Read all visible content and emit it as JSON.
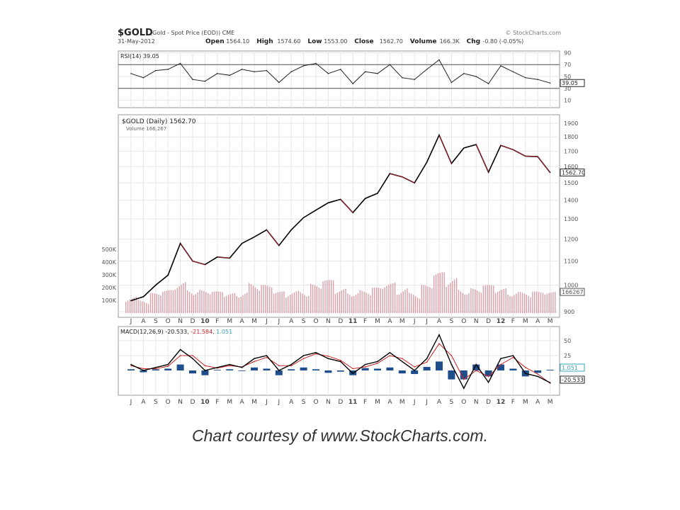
{
  "header": {
    "symbol": "$GOLD",
    "description": "(Gold - Spot Price (EOD)) CME",
    "date": "31-May-2012",
    "brand": "© StockCharts.com",
    "quote": [
      {
        "label": "Open",
        "value": "1564.10"
      },
      {
        "label": "High",
        "value": "1574.60"
      },
      {
        "label": "Low",
        "value": "1553.00"
      },
      {
        "label": "Close",
        "value": "1562.70"
      },
      {
        "label": "Volume",
        "value": "166.3K"
      },
      {
        "label": "Chg",
        "value": "-0.80 (-0.05%)"
      }
    ]
  },
  "caption": "Chart courtesy of www.StockCharts.com.",
  "colors": {
    "price": "#000000",
    "price_down": "#cc2233",
    "volume": "#d9a0a8",
    "macd": "#000000",
    "signal": "#cc2222",
    "histogram": "#1f4e8c",
    "grid": "#e6e6e6"
  },
  "chart_data": [
    {
      "type": "line",
      "title": "RSI(14) 39.05",
      "ylim": [
        0,
        100
      ],
      "yticks": [
        "90",
        "70",
        "50",
        "30",
        "10"
      ],
      "reference_lines": [
        70,
        30
      ],
      "last_label": "39.05",
      "x": [
        "J",
        "A",
        "S",
        "O",
        "N",
        "D",
        "10",
        "F",
        "M",
        "A",
        "M",
        "J",
        "J",
        "A",
        "S",
        "O",
        "N",
        "D",
        "11",
        "F",
        "M",
        "A",
        "M",
        "J",
        "J",
        "A",
        "S",
        "O",
        "N",
        "D",
        "12",
        "F",
        "M",
        "A",
        "M"
      ],
      "values": [
        55,
        48,
        60,
        62,
        72,
        45,
        42,
        55,
        52,
        62,
        58,
        60,
        40,
        58,
        68,
        72,
        55,
        62,
        38,
        58,
        55,
        70,
        48,
        45,
        62,
        78,
        40,
        55,
        50,
        38,
        68,
        58,
        48,
        45,
        39
      ]
    },
    {
      "type": "line",
      "title": "$GOLD (Daily) 1562.70",
      "subtitle": "Volume 166,267",
      "log_scale": true,
      "ylim": [
        880,
        1950
      ],
      "yticks": [
        "1900",
        "1800",
        "1700",
        "1600",
        "1500",
        "1400",
        "1300",
        "1200",
        "1100",
        "1000",
        "900"
      ],
      "last_label": "1562.70",
      "x": [
        "J",
        "A",
        "S",
        "O",
        "N",
        "D",
        "10",
        "F",
        "M",
        "A",
        "M",
        "J",
        "J",
        "A",
        "S",
        "O",
        "N",
        "D",
        "11",
        "F",
        "M",
        "A",
        "M",
        "J",
        "J",
        "A",
        "S",
        "O",
        "N",
        "D",
        "12",
        "F",
        "M",
        "A",
        "M"
      ],
      "values": [
        940,
        955,
        1000,
        1040,
        1180,
        1100,
        1085,
        1118,
        1113,
        1180,
        1210,
        1245,
        1170,
        1245,
        1307,
        1346,
        1386,
        1405,
        1333,
        1410,
        1439,
        1556,
        1536,
        1500,
        1628,
        1813,
        1620,
        1722,
        1746,
        1565,
        1740,
        1711,
        1668,
        1664,
        1563
      ],
      "volume": {
        "yticks": [
          "500K",
          "400K",
          "300K",
          "200K",
          "100K"
        ],
        "last_label": "166267",
        "values": [
          150,
          120,
          160,
          180,
          260,
          230,
          190,
          170,
          160,
          200,
          260,
          220,
          170,
          190,
          210,
          230,
          260,
          200,
          210,
          190,
          200,
          240,
          230,
          180,
          220,
          320,
          300,
          230,
          200,
          220,
          200,
          210,
          180,
          170,
          166
        ]
      }
    },
    {
      "type": "line",
      "title": "MACD(12,26,9)",
      "macd_label": "-20.533",
      "signal_label": "-21.584",
      "hist_label": "1.051",
      "yticks": [
        "50",
        "25"
      ],
      "ylim": [
        -45,
        70
      ],
      "x": [
        "J",
        "A",
        "S",
        "O",
        "N",
        "D",
        "10",
        "F",
        "M",
        "A",
        "M",
        "J",
        "J",
        "A",
        "S",
        "O",
        "N",
        "D",
        "11",
        "F",
        "M",
        "A",
        "M",
        "J",
        "J",
        "A",
        "S",
        "O",
        "N",
        "D",
        "12",
        "F",
        "M",
        "A",
        "M"
      ],
      "macd": [
        10,
        0,
        5,
        10,
        35,
        20,
        0,
        5,
        10,
        5,
        20,
        25,
        0,
        10,
        25,
        30,
        20,
        15,
        -5,
        10,
        15,
        30,
        15,
        0,
        20,
        60,
        10,
        -30,
        10,
        -20,
        20,
        25,
        -5,
        -10,
        -20.5
      ],
      "signal": [
        8,
        3,
        3,
        7,
        25,
        25,
        8,
        4,
        8,
        6,
        15,
        22,
        8,
        8,
        20,
        28,
        24,
        17,
        3,
        6,
        12,
        25,
        20,
        6,
        14,
        45,
        25,
        -15,
        0,
        -10,
        10,
        22,
        5,
        -6,
        -21.6
      ]
    }
  ]
}
